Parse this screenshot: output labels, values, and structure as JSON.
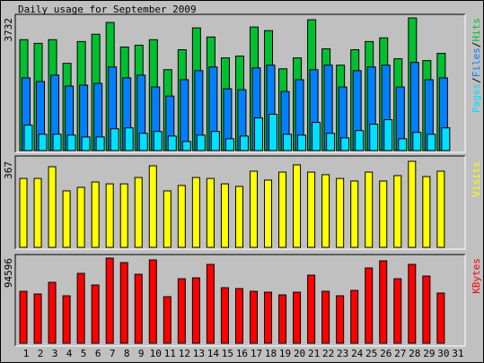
{
  "chart_data": [
    {
      "type": "bar",
      "title": "Daily usage for September 2009",
      "categories": [
        "1",
        "2",
        "3",
        "4",
        "5",
        "6",
        "7",
        "8",
        "9",
        "10",
        "11",
        "12",
        "13",
        "14",
        "15",
        "16",
        "17",
        "18",
        "19",
        "20",
        "21",
        "22",
        "23",
        "24",
        "25",
        "26",
        "27",
        "28",
        "29",
        "30",
        "31"
      ],
      "category_colors": [
        "#000000",
        "#000000",
        "#000000",
        "#000000",
        "#00a000",
        "#00a000",
        "#000000",
        "#000000",
        "#000000",
        "#000000",
        "#000000",
        "#00a000",
        "#00a000",
        "#000000",
        "#000000",
        "#000000",
        "#000000",
        "#000000",
        "#00a000",
        "#00a000",
        "#000000",
        "#000000",
        "#000000",
        "#000000",
        "#000000",
        "#00a000",
        "#00a000",
        "#000000",
        "#000000",
        "#000000",
        "#000000"
      ],
      "legend_separator": "/",
      "ylim": [
        0,
        3732
      ],
      "yticks": [
        3732
      ],
      "series": [
        {
          "name": "Hits",
          "color": "#00c030",
          "values": [
            3119,
            3016,
            3119,
            2454,
            3067,
            3272,
            3604,
            2914,
            2965,
            3119,
            2275,
            2837,
            3451,
            3195,
            2607,
            2658,
            3476,
            3374,
            2300,
            2607,
            3681,
            2863,
            2403,
            2837,
            3067,
            3170,
            2582,
            3732,
            2531,
            2735,
            null
          ]
        },
        {
          "name": "Files",
          "color": "#0080ff",
          "values": [
            2045,
            1943,
            2122,
            1815,
            1840,
            1891,
            2352,
            2045,
            2122,
            1789,
            1534,
            1994,
            2249,
            2352,
            1738,
            1713,
            2326,
            2403,
            1662,
            1994,
            2275,
            2403,
            1789,
            2249,
            2352,
            2403,
            1789,
            2480,
            1994,
            2045,
            null
          ]
        },
        {
          "name": "Pages",
          "color": "#00e0ff",
          "values": [
            716,
            460,
            460,
            435,
            383,
            383,
            613,
            639,
            486,
            537,
            409,
            256,
            435,
            537,
            332,
            409,
            920,
            1022,
            460,
            435,
            792,
            486,
            358,
            562,
            741,
            869,
            332,
            511,
            460,
            639,
            null
          ]
        }
      ]
    },
    {
      "type": "bar",
      "ylim": [
        0,
        367
      ],
      "yticks": [
        367
      ],
      "series": [
        {
          "name": "Visits",
          "color": "#ffff00",
          "values": [
            294,
            294,
            344,
            241,
            256,
            279,
            271,
            271,
            298,
            348,
            241,
            264,
            298,
            294,
            271,
            260,
            325,
            287,
            321,
            352,
            321,
            310,
            294,
            283,
            321,
            283,
            306,
            367,
            302,
            325,
            null
          ]
        }
      ]
    },
    {
      "type": "bar",
      "ylim": [
        0,
        94596
      ],
      "yticks": [
        94596
      ],
      "series": [
        {
          "name": "KBytes",
          "color": "#ff0000",
          "values": [
            57751,
            54764,
            67708,
            52772,
            77665,
            64721,
            94596,
            89613,
            76669,
            92600,
            51776,
            71690,
            72686,
            87622,
            61733,
            60738,
            57751,
            56755,
            53768,
            56755,
            75673,
            57751,
            52772,
            58746,
            83639,
            91604,
            71690,
            87622,
            74678,
            55759,
            null
          ]
        }
      ]
    }
  ]
}
